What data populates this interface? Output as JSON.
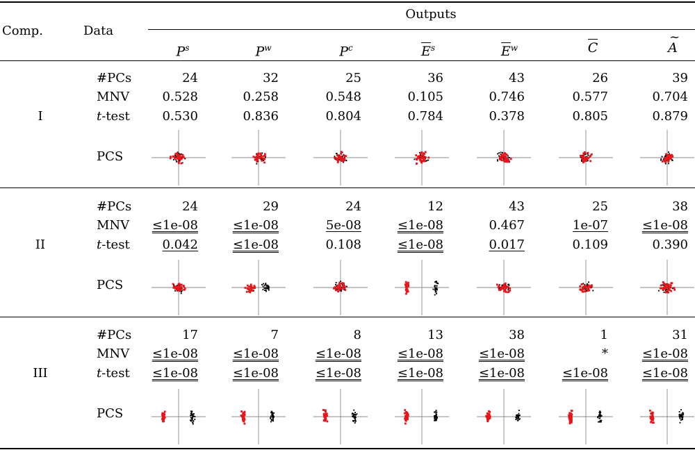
{
  "header": {
    "comp": "Comp.",
    "data": "Data",
    "outputs": "Outputs",
    "columns": [
      {
        "base": "P",
        "sup": "s",
        "bar": false,
        "tilde": false
      },
      {
        "base": "P",
        "sup": "w",
        "bar": false,
        "tilde": false
      },
      {
        "base": "P",
        "sup": "c",
        "bar": false,
        "tilde": false
      },
      {
        "base": "E",
        "sup": "s",
        "bar": true,
        "tilde": false
      },
      {
        "base": "E",
        "sup": "w",
        "bar": true,
        "tilde": false
      },
      {
        "base": "C",
        "sup": "",
        "bar": true,
        "tilde": false
      },
      {
        "base": "A",
        "sup": "",
        "bar": false,
        "tilde": true
      }
    ]
  },
  "row_labels": [
    "#PCs",
    "MNV",
    "t-test",
    "PCS"
  ],
  "sections": [
    {
      "comp": "I",
      "pcs": [
        "24",
        "32",
        "25",
        "36",
        "43",
        "26",
        "39"
      ],
      "mnv": [
        "0.528",
        "0.258",
        "0.548",
        "0.105",
        "0.746",
        "0.577",
        "0.704"
      ],
      "mnv_style": [
        "",
        "",
        "",
        "",
        "",
        "",
        ""
      ],
      "ttest": [
        "0.530",
        "0.836",
        "0.804",
        "0.784",
        "0.378",
        "0.805",
        "0.879"
      ],
      "ttest_style": [
        "",
        "",
        "",
        "",
        "",
        "",
        ""
      ],
      "scatter": [
        "mixed",
        "mixed",
        "mixed",
        "mixed",
        "mixed",
        "mixed",
        "mixed"
      ]
    },
    {
      "comp": "II",
      "pcs": [
        "24",
        "29",
        "24",
        "12",
        "43",
        "25",
        "38"
      ],
      "mnv": [
        "≤1e-08",
        "≤1e-08",
        "5e-08",
        "≤1e-08",
        "0.467",
        "1e-07",
        "≤1e-08"
      ],
      "mnv_style": [
        "double",
        "double",
        "single",
        "double",
        "",
        "single",
        "double"
      ],
      "ttest": [
        "0.042",
        "≤1e-08",
        "0.108",
        "≤1e-08",
        "0.017",
        "0.109",
        "0.390"
      ],
      "ttest_style": [
        "single",
        "double",
        "",
        "double",
        "single",
        "",
        ""
      ],
      "scatter": [
        "mixed",
        "lean",
        "mixed",
        "separated",
        "mixed",
        "mixed",
        "mixed"
      ]
    },
    {
      "comp": "III",
      "pcs": [
        "17",
        "7",
        "8",
        "13",
        "38",
        "1",
        "31"
      ],
      "mnv": [
        "≤1e-08",
        "≤1e-08",
        "≤1e-08",
        "≤1e-08",
        "≤1e-08",
        "*",
        "≤1e-08"
      ],
      "mnv_style": [
        "double",
        "double",
        "double",
        "double",
        "double",
        "",
        "double"
      ],
      "ttest": [
        "≤1e-08",
        "≤1e-08",
        "≤1e-08",
        "≤1e-08",
        "≤1e-08",
        "≤1e-08",
        "≤1e-08"
      ],
      "ttest_style": [
        "double",
        "double",
        "double",
        "double",
        "double",
        "double",
        "double"
      ],
      "scatter": [
        "separated",
        "separated",
        "separated",
        "separated",
        "separated",
        "separated",
        "separated"
      ]
    }
  ],
  "colors": {
    "group_a": "#e8141b",
    "group_b": "#000000",
    "axis": "#8a8a8a",
    "rule": "#000000"
  }
}
